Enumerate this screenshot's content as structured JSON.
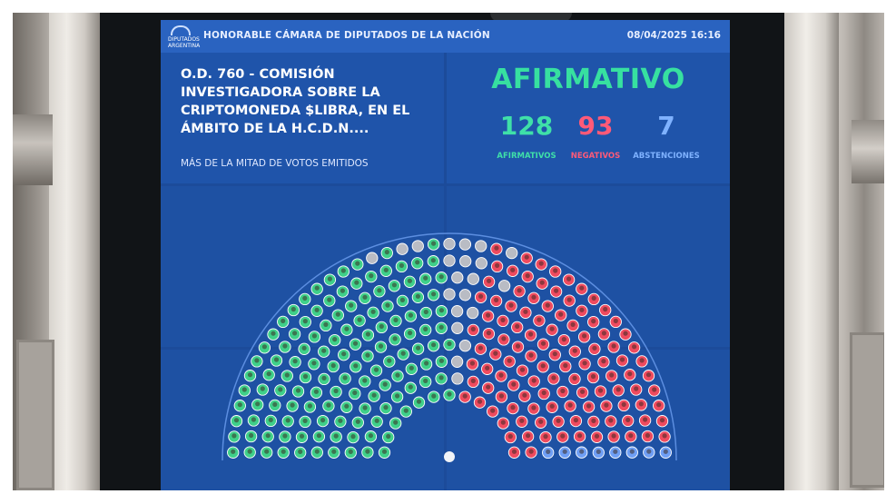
{
  "board": {
    "chamber_name": "HONORABLE CÁMARA DE DIPUTADOS DE LA NACIÓN",
    "logo_text_line1": "DIPUTADOS",
    "logo_text_line2": "ARGENTINA",
    "datetime": "08/04/2025 16:16",
    "motion_title": "O.D. 760 - COMISIÓN INVESTIGADORA SOBRE LA CRIPTOMONEDA $LIBRA, EN EL ÁMBITO DE LA H.C.D.N....",
    "majority_rule": "MÁS DE LA MITAD DE VOTOS EMITIDOS",
    "result": "AFIRMATIVO",
    "counts": {
      "affirmative": {
        "value": "128",
        "label": "AFIRMATIVOS"
      },
      "negative": {
        "value": "93",
        "label": "NEGATIVOS"
      },
      "abstentions": {
        "value": "7",
        "label": "ABSTENCIONES"
      }
    }
  },
  "colors": {
    "affirmative": "#3fd08a",
    "negative": "#ef4b5f",
    "abstention": "#6f9ff5",
    "absent": "#b9bcc4",
    "screen": "#1e51a3"
  },
  "hemicycle": {
    "rows": 10,
    "seats": {
      "affirmative": 128,
      "negative": 93,
      "abstention": 7,
      "absent": 29
    }
  }
}
